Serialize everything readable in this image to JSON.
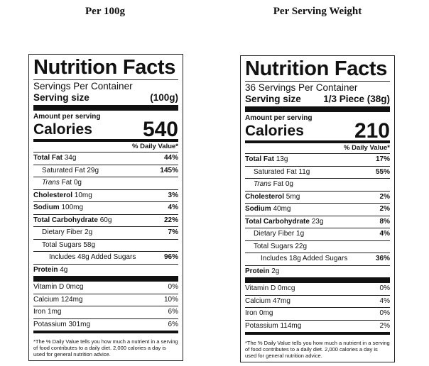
{
  "panels": [
    {
      "heading": "Per 100g",
      "title": "Nutrition Facts",
      "servings": "Servings Per Container",
      "serving_size_label": "Serving size",
      "serving_size_value": "(100g)",
      "amount_label": "Amount per serving",
      "calories_label": "Calories",
      "calories_value": "540",
      "dv_header": "% Daily Value*",
      "total_fat": {
        "label": "Total Fat",
        "amount": "34g",
        "dv": "44%"
      },
      "sat_fat": {
        "label": "Saturated Fat 29g",
        "dv": "145%"
      },
      "trans_fat": {
        "italic": "Trans",
        "rest": "Fat 0g"
      },
      "cholesterol": {
        "label": "Cholesterol",
        "amount": "10mg",
        "dv": "3%"
      },
      "sodium": {
        "label": "Sodium",
        "amount": "100mg",
        "dv": "4%"
      },
      "carb": {
        "label": "Total Carbohydrate",
        "amount": "60g",
        "dv": "22%"
      },
      "fiber": {
        "label": "Dietary Fiber 2g",
        "dv": "7%"
      },
      "sugars": {
        "label": "Total Sugars 58g"
      },
      "added_sugars": {
        "label": "Includes 48g Added Sugars",
        "dv": "96%"
      },
      "protein": {
        "label": "Protein",
        "amount": "4g"
      },
      "vitd": {
        "label": "Vitamin D 0mcg",
        "dv": "0%"
      },
      "calcium": {
        "label": "Calcium 124mg",
        "dv": "10%"
      },
      "iron": {
        "label": "Iron 1mg",
        "dv": "6%"
      },
      "potassium": {
        "label": "Potassium 301mg",
        "dv": "6%"
      },
      "footnote": "*The % Daily Value tells you how much a nutrient in a serving of food contributes to a daily diet. 2,000 calories a day is used for general nutrition advice."
    },
    {
      "heading": "Per Serving Weight",
      "title": "Nutrition Facts",
      "servings": "36 Servings Per Container",
      "serving_size_label": "Serving size",
      "serving_size_value": "1/3 Piece (38g)",
      "amount_label": "Amount per serving",
      "calories_label": "Calories",
      "calories_value": "210",
      "dv_header": "% Daily Value*",
      "total_fat": {
        "label": "Total Fat",
        "amount": "13g",
        "dv": "17%"
      },
      "sat_fat": {
        "label": "Saturated Fat 11g",
        "dv": "55%"
      },
      "trans_fat": {
        "italic": "Trans",
        "rest": "Fat 0g"
      },
      "cholesterol": {
        "label": "Cholesterol",
        "amount": "5mg",
        "dv": "2%"
      },
      "sodium": {
        "label": "Sodium",
        "amount": "40mg",
        "dv": "2%"
      },
      "carb": {
        "label": "Total Carbohydrate",
        "amount": "23g",
        "dv": "8%"
      },
      "fiber": {
        "label": "Dietary Fiber 1g",
        "dv": "4%"
      },
      "sugars": {
        "label": "Total Sugars 22g"
      },
      "added_sugars": {
        "label": "Includes 18g Added Sugars",
        "dv": "36%"
      },
      "protein": {
        "label": "Protein",
        "amount": "2g"
      },
      "vitd": {
        "label": "Vitamin D 0mcg",
        "dv": "0%"
      },
      "calcium": {
        "label": "Calcium 47mg",
        "dv": "4%"
      },
      "iron": {
        "label": "Iron 0mg",
        "dv": "0%"
      },
      "potassium": {
        "label": "Potassium 114mg",
        "dv": "2%"
      },
      "footnote": "*The % Daily Value tells you how much a nutrient in a serving of food contributes to a daily diet. 2,000 calories a day is used for general nutrition advice."
    }
  ]
}
